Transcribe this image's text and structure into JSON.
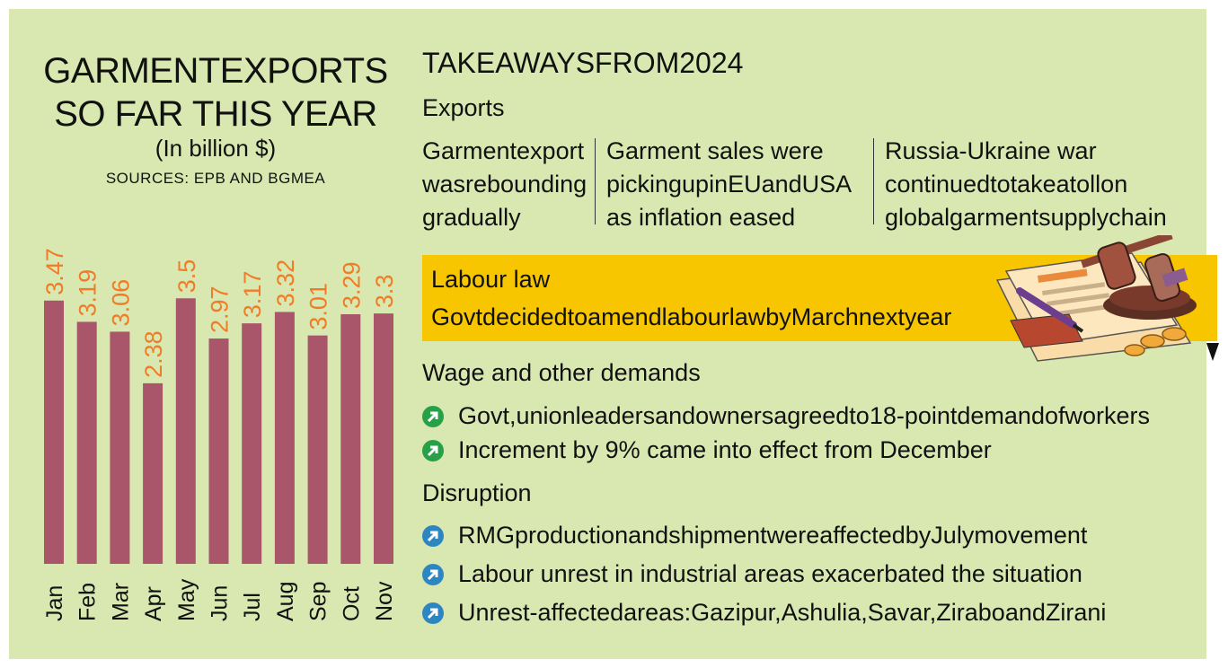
{
  "left": {
    "title_line1": "GARMENTEXPORTS",
    "title_line2": "SO FAR THIS YEAR",
    "unit": "(In billion $)",
    "sources": "SOURCES: EPB AND BGMEA"
  },
  "chart_data": {
    "type": "bar",
    "title": "GARMENTEXPORTS SO FAR THIS YEAR",
    "subtitle": "(In billion $)",
    "categories": [
      "Jan",
      "Feb",
      "Mar",
      "Apr",
      "May",
      "Jun",
      "Jul",
      "Aug",
      "Sep",
      "Oct",
      "Nov"
    ],
    "values": [
      3.47,
      3.19,
      3.06,
      2.38,
      3.5,
      2.97,
      3.17,
      3.32,
      3.01,
      3.29,
      3.3
    ],
    "value_labels": [
      "3.47",
      "3.19",
      "3.06",
      "2.38",
      "3.5",
      "2.97",
      "3.17",
      "3.32",
      "3.01",
      "3.29",
      "3.3"
    ],
    "bar_color": "#a9566b",
    "label_color": "#f07c27",
    "xlabel": "",
    "ylabel": "",
    "grid": false
  },
  "right": {
    "heading": "TAKEAWAYSFROM2024",
    "exports_heading": "Exports",
    "columns": [
      [
        "Garmentexport",
        "wasrebounding",
        "gradually"
      ],
      [
        "Garment sales were",
        "pickingupinEUandUSA",
        "as inflation eased"
      ],
      [
        "Russia-Ukraine war",
        "continuedtotakeatollon",
        "globalgarmentsupplychain"
      ]
    ],
    "labour_heading": "Labour law",
    "labour_text": "Govtdecidedtoamendlabourlawby",
    "labour_text_tail": "Marchnextyear",
    "wage_heading": "Wage and other demands",
    "wage_items": [
      "Govt,unionleadersandownersagreedto18-pointdemandofworkers",
      "Increment by 9% came into effect from December"
    ],
    "disruption_heading": "Disruption",
    "disruption_items": [
      "RMGproductionandshipmentwereaffectedbyJulymovement",
      "Labour unrest in industrial areas exacerbated the situation",
      "Unrest-affectedareas:Gazipur,Ashulia,Savar,ZiraboandZirani"
    ],
    "green": "#27a047",
    "blue": "#2e86c1",
    "yellow": "#f7c600",
    "icons": [
      "gavel-icon",
      "documents-icon",
      "pen-icon",
      "coins-icon"
    ]
  }
}
